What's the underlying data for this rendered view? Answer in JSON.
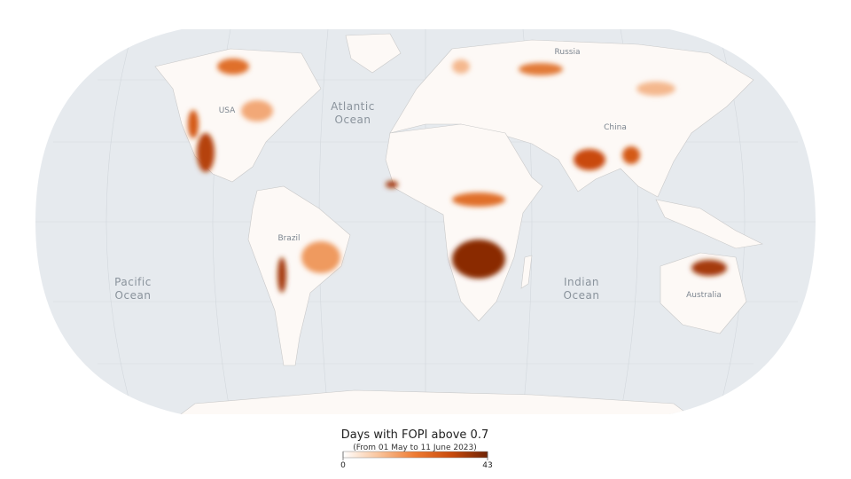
{
  "map": {
    "labels": [
      {
        "name": "USA",
        "lines": [
          "USA"
        ]
      },
      {
        "name": "Russia",
        "lines": [
          "Russia"
        ]
      },
      {
        "name": "China",
        "lines": [
          "China"
        ]
      },
      {
        "name": "Brazil",
        "lines": [
          "Brazil"
        ]
      },
      {
        "name": "Australia",
        "lines": [
          "Australia"
        ]
      },
      {
        "name": "Atlantic Ocean",
        "lines": [
          "Atlantic",
          "Ocean"
        ]
      },
      {
        "name": "Pacific Ocean",
        "lines": [
          "Pacific",
          "Ocean"
        ]
      },
      {
        "name": "Indian Ocean",
        "lines": [
          "Indian",
          "Ocean"
        ]
      }
    ]
  },
  "legend": {
    "title": "Days with FOPI above 0.7",
    "subtitle": "(From 01 May to 11 June 2023)",
    "min": 0,
    "max": 43,
    "colors": [
      "#ffffff",
      "#f9c39a",
      "#ee7a32",
      "#c94a0c",
      "#6e2305"
    ]
  }
}
